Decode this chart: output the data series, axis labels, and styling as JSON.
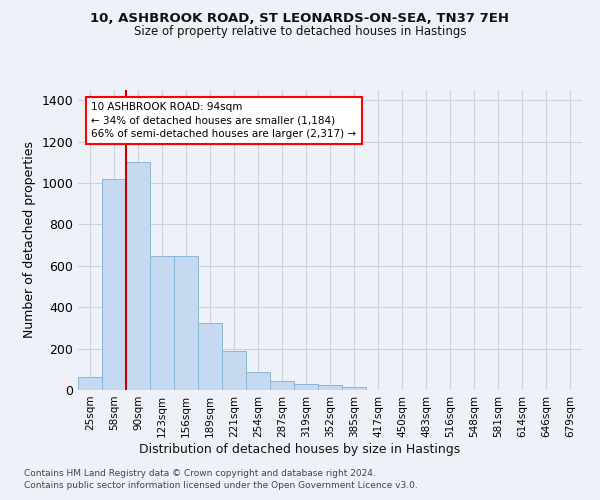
{
  "title_line1": "10, ASHBROOK ROAD, ST LEONARDS-ON-SEA, TN37 7EH",
  "title_line2": "Size of property relative to detached houses in Hastings",
  "xlabel": "Distribution of detached houses by size in Hastings",
  "ylabel": "Number of detached properties",
  "footer_line1": "Contains HM Land Registry data © Crown copyright and database right 2024.",
  "footer_line2": "Contains public sector information licensed under the Open Government Licence v3.0.",
  "annotation_line1": "10 ASHBROOK ROAD: 94sqm",
  "annotation_line2": "← 34% of detached houses are smaller (1,184)",
  "annotation_line3": "66% of semi-detached houses are larger (2,317) →",
  "bar_categories": [
    "25sqm",
    "58sqm",
    "90sqm",
    "123sqm",
    "156sqm",
    "189sqm",
    "221sqm",
    "254sqm",
    "287sqm",
    "319sqm",
    "352sqm",
    "385sqm",
    "417sqm",
    "450sqm",
    "483sqm",
    "516sqm",
    "548sqm",
    "581sqm",
    "614sqm",
    "646sqm",
    "679sqm"
  ],
  "bar_values": [
    65,
    1020,
    1100,
    650,
    650,
    325,
    190,
    88,
    45,
    30,
    25,
    15,
    0,
    0,
    0,
    0,
    0,
    0,
    0,
    0,
    0
  ],
  "bar_color": "#c5d9f0",
  "bar_edge_color": "#8ab4d8",
  "red_line_color": "#cc0000",
  "property_bin_index": 2,
  "background_color": "#eef2f8",
  "grid_color": "#c8d2e0",
  "ylim": [
    0,
    1450
  ],
  "yticks": [
    0,
    200,
    400,
    600,
    800,
    1000,
    1200,
    1400
  ]
}
